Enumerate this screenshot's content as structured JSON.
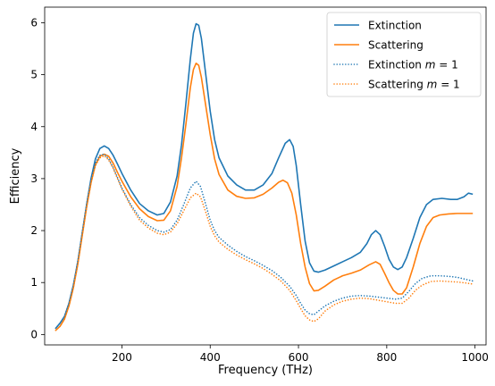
{
  "chart_data": {
    "type": "line",
    "title": "",
    "xlabel": "Frequency (THz)",
    "ylabel": "Efficiency",
    "xlim": [
      25,
      1025
    ],
    "ylim": [
      -0.2,
      6.3
    ],
    "xticks": [
      200,
      400,
      600,
      800,
      1000
    ],
    "yticks": [
      0,
      1,
      2,
      3,
      4,
      5,
      6
    ],
    "grid": false,
    "legend_position": "top-right",
    "series": [
      {
        "name": "Extinction",
        "legend_latex_m": false,
        "color": "#1f77b4",
        "style": "solid",
        "points": [
          [
            50,
            0.12
          ],
          [
            60,
            0.22
          ],
          [
            70,
            0.35
          ],
          [
            80,
            0.6
          ],
          [
            90,
            0.95
          ],
          [
            100,
            1.4
          ],
          [
            110,
            1.95
          ],
          [
            120,
            2.5
          ],
          [
            130,
            3.0
          ],
          [
            140,
            3.38
          ],
          [
            150,
            3.58
          ],
          [
            160,
            3.63
          ],
          [
            170,
            3.58
          ],
          [
            180,
            3.45
          ],
          [
            190,
            3.28
          ],
          [
            200,
            3.1
          ],
          [
            220,
            2.78
          ],
          [
            240,
            2.52
          ],
          [
            260,
            2.38
          ],
          [
            280,
            2.3
          ],
          [
            295,
            2.33
          ],
          [
            310,
            2.55
          ],
          [
            325,
            3.05
          ],
          [
            335,
            3.65
          ],
          [
            345,
            4.45
          ],
          [
            355,
            5.3
          ],
          [
            362,
            5.8
          ],
          [
            368,
            5.98
          ],
          [
            374,
            5.95
          ],
          [
            380,
            5.7
          ],
          [
            390,
            5.0
          ],
          [
            400,
            4.3
          ],
          [
            410,
            3.75
          ],
          [
            420,
            3.4
          ],
          [
            440,
            3.05
          ],
          [
            460,
            2.88
          ],
          [
            480,
            2.78
          ],
          [
            500,
            2.78
          ],
          [
            520,
            2.88
          ],
          [
            540,
            3.1
          ],
          [
            555,
            3.4
          ],
          [
            570,
            3.68
          ],
          [
            580,
            3.75
          ],
          [
            588,
            3.62
          ],
          [
            595,
            3.25
          ],
          [
            605,
            2.5
          ],
          [
            615,
            1.8
          ],
          [
            625,
            1.38
          ],
          [
            635,
            1.22
          ],
          [
            645,
            1.2
          ],
          [
            660,
            1.24
          ],
          [
            680,
            1.32
          ],
          [
            700,
            1.4
          ],
          [
            720,
            1.48
          ],
          [
            740,
            1.58
          ],
          [
            755,
            1.75
          ],
          [
            765,
            1.92
          ],
          [
            775,
            2.0
          ],
          [
            785,
            1.92
          ],
          [
            795,
            1.7
          ],
          [
            805,
            1.45
          ],
          [
            815,
            1.3
          ],
          [
            825,
            1.25
          ],
          [
            835,
            1.3
          ],
          [
            845,
            1.48
          ],
          [
            860,
            1.85
          ],
          [
            875,
            2.25
          ],
          [
            890,
            2.5
          ],
          [
            905,
            2.6
          ],
          [
            925,
            2.62
          ],
          [
            945,
            2.6
          ],
          [
            960,
            2.6
          ],
          [
            975,
            2.65
          ],
          [
            985,
            2.72
          ],
          [
            995,
            2.7
          ]
        ]
      },
      {
        "name": "Scattering",
        "legend_latex_m": false,
        "color": "#ff7f0e",
        "style": "solid",
        "points": [
          [
            50,
            0.08
          ],
          [
            60,
            0.16
          ],
          [
            70,
            0.3
          ],
          [
            80,
            0.55
          ],
          [
            90,
            0.9
          ],
          [
            100,
            1.35
          ],
          [
            110,
            1.9
          ],
          [
            120,
            2.45
          ],
          [
            130,
            2.92
          ],
          [
            140,
            3.27
          ],
          [
            150,
            3.43
          ],
          [
            160,
            3.47
          ],
          [
            170,
            3.43
          ],
          [
            180,
            3.3
          ],
          [
            190,
            3.12
          ],
          [
            200,
            2.95
          ],
          [
            220,
            2.65
          ],
          [
            240,
            2.42
          ],
          [
            260,
            2.27
          ],
          [
            280,
            2.19
          ],
          [
            295,
            2.2
          ],
          [
            310,
            2.38
          ],
          [
            325,
            2.85
          ],
          [
            335,
            3.4
          ],
          [
            345,
            4.05
          ],
          [
            355,
            4.75
          ],
          [
            362,
            5.1
          ],
          [
            368,
            5.22
          ],
          [
            374,
            5.18
          ],
          [
            380,
            4.95
          ],
          [
            390,
            4.4
          ],
          [
            400,
            3.85
          ],
          [
            410,
            3.38
          ],
          [
            420,
            3.08
          ],
          [
            440,
            2.78
          ],
          [
            460,
            2.66
          ],
          [
            480,
            2.62
          ],
          [
            500,
            2.63
          ],
          [
            520,
            2.7
          ],
          [
            540,
            2.82
          ],
          [
            555,
            2.93
          ],
          [
            565,
            2.97
          ],
          [
            575,
            2.92
          ],
          [
            585,
            2.72
          ],
          [
            595,
            2.3
          ],
          [
            605,
            1.75
          ],
          [
            615,
            1.3
          ],
          [
            625,
            0.98
          ],
          [
            635,
            0.84
          ],
          [
            645,
            0.85
          ],
          [
            660,
            0.93
          ],
          [
            680,
            1.05
          ],
          [
            700,
            1.13
          ],
          [
            720,
            1.18
          ],
          [
            740,
            1.24
          ],
          [
            760,
            1.34
          ],
          [
            775,
            1.4
          ],
          [
            785,
            1.35
          ],
          [
            795,
            1.18
          ],
          [
            805,
            1.0
          ],
          [
            815,
            0.85
          ],
          [
            825,
            0.78
          ],
          [
            835,
            0.78
          ],
          [
            845,
            0.9
          ],
          [
            860,
            1.3
          ],
          [
            875,
            1.75
          ],
          [
            890,
            2.08
          ],
          [
            905,
            2.25
          ],
          [
            920,
            2.3
          ],
          [
            940,
            2.32
          ],
          [
            960,
            2.33
          ],
          [
            980,
            2.33
          ],
          [
            995,
            2.33
          ]
        ]
      },
      {
        "name": "Extinction",
        "legend_latex_m": true,
        "color": "#1f77b4",
        "style": "dotted",
        "points": [
          [
            50,
            0.12
          ],
          [
            60,
            0.22
          ],
          [
            70,
            0.35
          ],
          [
            80,
            0.6
          ],
          [
            90,
            0.95
          ],
          [
            100,
            1.4
          ],
          [
            110,
            1.95
          ],
          [
            120,
            2.5
          ],
          [
            130,
            2.98
          ],
          [
            140,
            3.3
          ],
          [
            150,
            3.45
          ],
          [
            160,
            3.47
          ],
          [
            170,
            3.38
          ],
          [
            180,
            3.22
          ],
          [
            190,
            3.02
          ],
          [
            200,
            2.82
          ],
          [
            220,
            2.5
          ],
          [
            240,
            2.25
          ],
          [
            260,
            2.1
          ],
          [
            280,
            2.0
          ],
          [
            295,
            1.97
          ],
          [
            310,
            2.02
          ],
          [
            325,
            2.2
          ],
          [
            340,
            2.5
          ],
          [
            355,
            2.82
          ],
          [
            368,
            2.95
          ],
          [
            378,
            2.85
          ],
          [
            390,
            2.5
          ],
          [
            400,
            2.2
          ],
          [
            410,
            2.0
          ],
          [
            420,
            1.87
          ],
          [
            440,
            1.72
          ],
          [
            460,
            1.6
          ],
          [
            480,
            1.5
          ],
          [
            500,
            1.42
          ],
          [
            520,
            1.33
          ],
          [
            540,
            1.23
          ],
          [
            560,
            1.1
          ],
          [
            580,
            0.93
          ],
          [
            595,
            0.75
          ],
          [
            605,
            0.6
          ],
          [
            615,
            0.47
          ],
          [
            625,
            0.4
          ],
          [
            635,
            0.38
          ],
          [
            645,
            0.45
          ],
          [
            660,
            0.55
          ],
          [
            680,
            0.64
          ],
          [
            700,
            0.7
          ],
          [
            720,
            0.74
          ],
          [
            740,
            0.75
          ],
          [
            760,
            0.74
          ],
          [
            780,
            0.72
          ],
          [
            800,
            0.7
          ],
          [
            820,
            0.68
          ],
          [
            835,
            0.7
          ],
          [
            850,
            0.83
          ],
          [
            865,
            0.98
          ],
          [
            880,
            1.08
          ],
          [
            900,
            1.13
          ],
          [
            920,
            1.13
          ],
          [
            940,
            1.12
          ],
          [
            960,
            1.1
          ],
          [
            980,
            1.06
          ],
          [
            995,
            1.03
          ]
        ]
      },
      {
        "name": "Scattering",
        "legend_latex_m": true,
        "color": "#ff7f0e",
        "style": "dotted",
        "points": [
          [
            50,
            0.08
          ],
          [
            60,
            0.16
          ],
          [
            70,
            0.3
          ],
          [
            80,
            0.55
          ],
          [
            90,
            0.9
          ],
          [
            100,
            1.35
          ],
          [
            110,
            1.9
          ],
          [
            120,
            2.45
          ],
          [
            130,
            2.92
          ],
          [
            140,
            3.25
          ],
          [
            150,
            3.4
          ],
          [
            160,
            3.44
          ],
          [
            170,
            3.36
          ],
          [
            180,
            3.2
          ],
          [
            190,
            3.0
          ],
          [
            200,
            2.8
          ],
          [
            220,
            2.47
          ],
          [
            240,
            2.2
          ],
          [
            260,
            2.05
          ],
          [
            280,
            1.95
          ],
          [
            295,
            1.92
          ],
          [
            310,
            1.97
          ],
          [
            325,
            2.13
          ],
          [
            340,
            2.38
          ],
          [
            355,
            2.63
          ],
          [
            368,
            2.72
          ],
          [
            378,
            2.65
          ],
          [
            390,
            2.35
          ],
          [
            400,
            2.08
          ],
          [
            410,
            1.9
          ],
          [
            420,
            1.78
          ],
          [
            440,
            1.64
          ],
          [
            460,
            1.53
          ],
          [
            480,
            1.44
          ],
          [
            500,
            1.36
          ],
          [
            520,
            1.27
          ],
          [
            540,
            1.16
          ],
          [
            560,
            1.03
          ],
          [
            580,
            0.85
          ],
          [
            595,
            0.65
          ],
          [
            605,
            0.5
          ],
          [
            615,
            0.36
          ],
          [
            625,
            0.28
          ],
          [
            635,
            0.25
          ],
          [
            645,
            0.3
          ],
          [
            660,
            0.45
          ],
          [
            680,
            0.57
          ],
          [
            700,
            0.64
          ],
          [
            720,
            0.68
          ],
          [
            740,
            0.7
          ],
          [
            760,
            0.69
          ],
          [
            780,
            0.66
          ],
          [
            800,
            0.63
          ],
          [
            820,
            0.6
          ],
          [
            835,
            0.6
          ],
          [
            850,
            0.7
          ],
          [
            865,
            0.85
          ],
          [
            880,
            0.95
          ],
          [
            900,
            1.02
          ],
          [
            920,
            1.03
          ],
          [
            940,
            1.02
          ],
          [
            960,
            1.01
          ],
          [
            980,
            0.99
          ],
          [
            995,
            0.97
          ]
        ]
      }
    ],
    "legend": {
      "entries": [
        {
          "text": "Extinction",
          "suffix": ""
        },
        {
          "text": "Scattering",
          "suffix": ""
        },
        {
          "text": "Extinction ",
          "suffix": "m = 1"
        },
        {
          "text": "Scattering ",
          "suffix": "m = 1"
        }
      ]
    }
  }
}
